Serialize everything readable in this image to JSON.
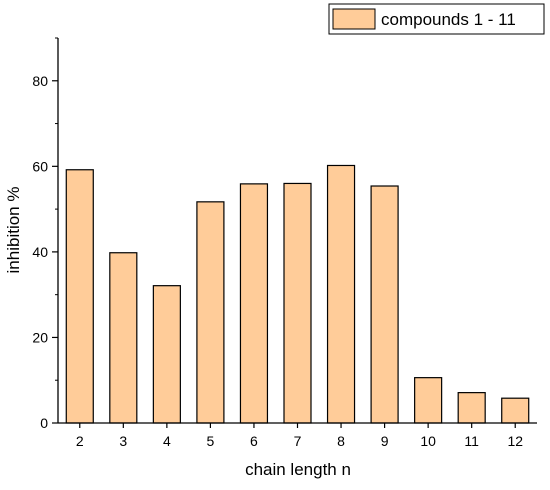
{
  "chart_data": {
    "type": "bar",
    "categories": [
      "2",
      "3",
      "4",
      "5",
      "6",
      "7",
      "8",
      "9",
      "10",
      "11",
      "12"
    ],
    "series": [
      {
        "name": "compounds 1 - 11",
        "values": [
          59.2,
          39.8,
          32.1,
          51.7,
          55.9,
          56.0,
          60.2,
          55.4,
          10.6,
          7.1,
          5.8
        ]
      }
    ],
    "xlabel": "chain length n",
    "ylabel": "inhibition %",
    "ylim": [
      0,
      90
    ],
    "yticks": [
      0,
      20,
      40,
      60,
      80
    ],
    "grid": false,
    "legend_position": "top-right",
    "bar_color": "#FFCC99",
    "bar_edge_color": "#000000"
  }
}
